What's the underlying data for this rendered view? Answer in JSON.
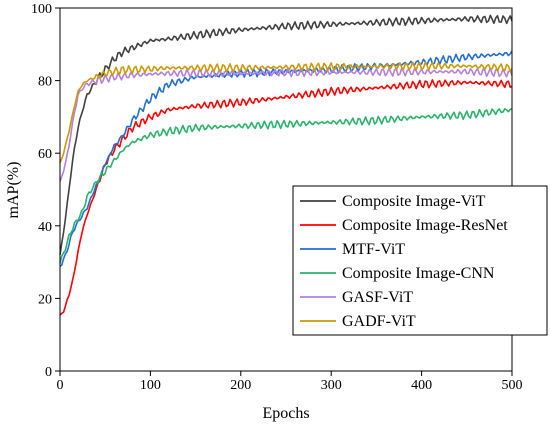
{
  "chart_data": {
    "type": "line",
    "xlabel": "Epochs",
    "ylabel": "mAP(%)",
    "xlim": [
      0,
      500
    ],
    "ylim": [
      0,
      100
    ],
    "x_ticks": [
      "0",
      "100",
      "200",
      "300",
      "400",
      "500"
    ],
    "y_ticks": [
      "0",
      "20",
      "40",
      "60",
      "80",
      "100"
    ],
    "grid": false,
    "legend_position": "bottom-right",
    "x": [
      0,
      5,
      10,
      15,
      20,
      25,
      30,
      40,
      50,
      60,
      70,
      80,
      100,
      120,
      150,
      200,
      250,
      300,
      350,
      400,
      450,
      500
    ],
    "series": [
      {
        "name": "Composite Image-ViT",
        "color": "#404040",
        "values": [
          32,
          40,
          50,
          60,
          67,
          72,
          76,
          80,
          83,
          86,
          88,
          89,
          91,
          91.5,
          92.5,
          94,
          95,
          95.5,
          96,
          96.5,
          97,
          96.8
        ]
      },
      {
        "name": "Composite Image-ResNet",
        "color": "#ff0000",
        "values": [
          15,
          17,
          21,
          26,
          33,
          39,
          43,
          50,
          57,
          61,
          64,
          67,
          70,
          72,
          73,
          74,
          75.5,
          77,
          78,
          79,
          79.5,
          79
        ]
      },
      {
        "name": "MTF-ViT",
        "color": "#1f6fd6",
        "values": [
          29,
          31,
          35,
          39,
          41,
          43,
          45,
          51,
          57,
          62,
          65,
          69,
          75,
          79,
          81,
          82,
          82.5,
          83,
          84,
          85,
          86.5,
          87.5
        ]
      },
      {
        "name": "Composite Image-CNN",
        "color": "#2ab36a",
        "values": [
          30,
          33,
          37,
          40,
          42,
          44,
          48,
          52,
          55,
          58,
          61,
          63,
          65,
          66,
          67,
          67.5,
          68,
          68.5,
          69,
          70,
          70.5,
          72
        ]
      },
      {
        "name": "GASF-ViT",
        "color": "#b57fe0",
        "values": [
          52,
          56,
          62,
          70,
          76,
          78,
          79,
          80,
          80.5,
          81,
          81.2,
          81.5,
          81.8,
          82,
          82,
          82,
          82.2,
          82.3,
          82.3,
          82.4,
          82.5,
          82
        ]
      },
      {
        "name": "GADF-ViT",
        "color": "#cc9a06",
        "values": [
          57,
          61,
          66,
          72,
          77,
          79,
          80,
          81,
          82,
          82.5,
          83,
          83,
          83.2,
          83.5,
          83.5,
          83.5,
          83.7,
          83.8,
          83.9,
          84,
          84,
          83.5
        ]
      }
    ]
  }
}
